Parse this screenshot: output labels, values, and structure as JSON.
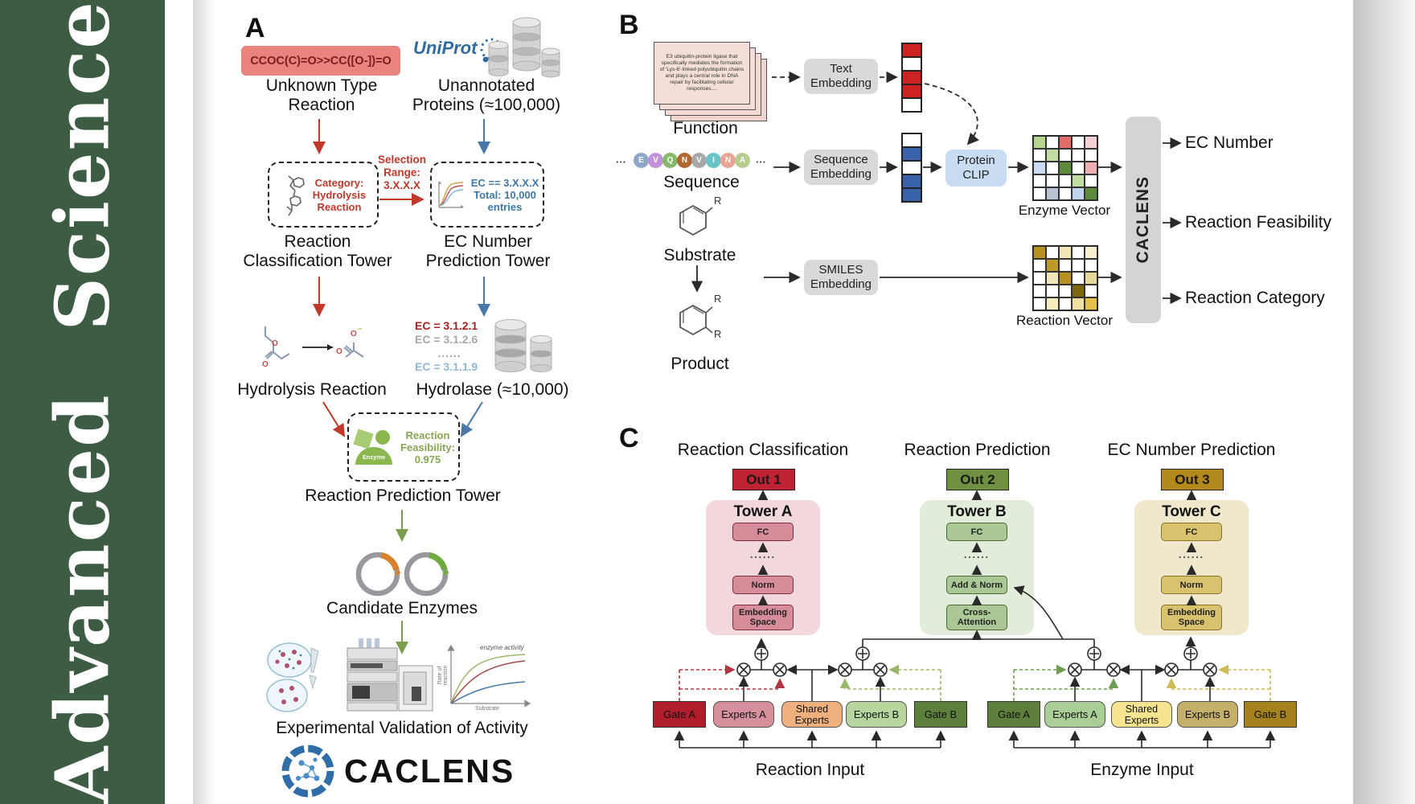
{
  "sidebar": {
    "journal": "Advanced Science"
  },
  "panel_a": {
    "label": "A",
    "smiles": "CCOC(C)=O>>CC([O-])=O",
    "uniprot": "UniProt",
    "unknown_reaction": "Unknown Type\nReaction",
    "unannotated": "Unannotated\nProteins (≈100,000)",
    "category_box": "Category:\nHydrolysis\nReaction",
    "selection": "Selection\nRange:\n3.X.X.X",
    "ec_box": "EC == 3.X.X.X\nTotal: 10,000\nentries",
    "classification_tower": "Reaction\nClassification Tower",
    "ec_tower": "EC Number\nPrediction Tower",
    "hydrolysis": "Hydrolysis Reaction",
    "ec_list": [
      "EC = 3.1.2.1",
      "EC = 3.1.2.6",
      "......",
      "EC = 3.1.1.9"
    ],
    "hydrolase": "Hydrolase (≈10,000)",
    "enzyme_badge": "Enzyme",
    "feasibility": "Reaction\nFeasibility:\n0.975",
    "prediction_tower": "Reaction Prediction Tower",
    "candidate": "Candidate Enzymes",
    "graph": {
      "curve_label": "enzyme activity",
      "ylabel": "Rate of reaction",
      "xlabel": "Substrate"
    },
    "validation": "Experimental Validation of Activity",
    "logo_text": "CACLENS"
  },
  "panel_b": {
    "label": "B",
    "function_card": "E3 ubiquitin-protein ligase that specifically mediates the formation of 'Lys-6'-linked polyubiquitin chains and plays a central role in DNA repair by facilitating cellular responses....",
    "function_label": "Function",
    "ellipsis_left": "···",
    "ellipsis_right": "···",
    "sequence": {
      "letters": [
        "E",
        "V",
        "Q",
        "N",
        "V",
        "I",
        "N",
        "A"
      ],
      "colors": [
        "#8ea6c8",
        "#c490dc",
        "#88b86a",
        "#b06830",
        "#a8a8a8",
        "#68c4c8",
        "#e8a494",
        "#b8cc8e"
      ],
      "label": "Sequence"
    },
    "substrate_label": "Substrate",
    "product_label": "Product",
    "r_label": "R",
    "text_embedding": "Text\nEmbedding",
    "sequence_embedding": "Sequence\nEmbedding",
    "smiles_embedding": "SMILES\nEmbedding",
    "protein_clip": "Protein\nCLIP",
    "text_vector": [
      "#cc2222",
      "#ffffff",
      "#cc2222",
      "#cc2222",
      "#ffffff"
    ],
    "seq_vector": [
      "#ffffff",
      "#3a62a8",
      "#ffffff",
      "#3a62a8",
      "#3a62a8"
    ],
    "enzyme_vector": {
      "label": "Enzyme Vector",
      "grid": [
        [
          "#b5d48e",
          "#ffffff",
          "#e06c6c",
          "#ffffff",
          "#f5d0d4"
        ],
        [
          "#ffffff",
          "#c2dca4",
          "#ffffff",
          "#ffffff",
          "#ffffff"
        ],
        [
          "#ccdcf0",
          "#ffffff",
          "#5f8a3c",
          "#ffffff",
          "#eeaeb2"
        ],
        [
          "#ffffff",
          "#ffffff",
          "#ffffff",
          "#c2dca4",
          "#ffffff"
        ],
        [
          "#ffffff",
          "#b8c4d4",
          "#ffffff",
          "#c0d4ee",
          "#5f8a3c"
        ]
      ]
    },
    "reaction_vector": {
      "label": "Reaction Vector",
      "grid": [
        [
          "#b8901f",
          "#ffffff",
          "#f2e6b8",
          "#ffffff",
          "#f7efd0"
        ],
        [
          "#ffffff",
          "#c09a28",
          "#ffffff",
          "#ffffff",
          "#ffffff"
        ],
        [
          "#ffffff",
          "#f2e6b8",
          "#b8901f",
          "#ffffff",
          "#e6d898"
        ],
        [
          "#ffffff",
          "#ffffff",
          "#ffffff",
          "#7c680f",
          "#ffffff"
        ],
        [
          "#ffffff",
          "#f5ecc0",
          "#ffffff",
          "#f0dfa0",
          "#e4c048"
        ]
      ]
    },
    "caclens_bar": "CACLENS",
    "outputs": [
      "EC Number",
      "Reaction Feasibility",
      "Reaction Category"
    ]
  },
  "panel_c": {
    "label": "C",
    "titles": [
      "Reaction Classification",
      "Reaction Prediction",
      "EC Number Prediction"
    ],
    "outs": [
      "Out 1",
      "Out 2",
      "Out 3"
    ],
    "towers": [
      {
        "name": "Tower A",
        "layers": [
          "FC",
          "......",
          "Norm",
          "Embedding\nSpace"
        ]
      },
      {
        "name": "Tower B",
        "layers": [
          "FC",
          "......",
          "Add & Norm",
          "Cross-\nAttention"
        ]
      },
      {
        "name": "Tower C",
        "layers": [
          "FC",
          "......",
          "Norm",
          "Embedding\nSpace"
        ]
      }
    ],
    "moe_reaction": {
      "boxes": [
        "Gate A",
        "Experts A",
        "Shared\nExperts",
        "Experts B",
        "Gate B"
      ],
      "input": "Reaction Input"
    },
    "moe_enzyme": {
      "boxes": [
        "Gate A",
        "Experts A",
        "Shared\nExperts",
        "Experts B",
        "Gate B"
      ],
      "input": "Enzyme Input"
    }
  },
  "colors": {
    "sidebar_green": "#3d5c44",
    "smiles_box": "#e8837e",
    "uniprot_blue": "#2f6b9e",
    "red_accent": "#c0392b",
    "blue_accent": "#4878a8",
    "green_accent": "#7a9e4e",
    "protein_clip_bg": "#c8dcf2",
    "caclens_bar_bg": "#d4d4d4",
    "out1": "#bf2333",
    "out2": "#6e9040",
    "out3": "#b3891d",
    "tower_a_bg": "#f2d7dc",
    "tower_b_bg": "#e2ecda",
    "tower_c_bg": "#f0e8cd",
    "gate_a_reaction": "#b01e2e",
    "experts_a_reaction": "#d6909c",
    "shared_reaction": "#eeb07c",
    "experts_b_reaction": "#b6d69e",
    "gate_b_reaction": "#5d7f3c",
    "gate_a_enzyme": "#5d7f3c",
    "experts_a_enzyme": "#a9cf97",
    "shared_enzyme": "#f7e48e",
    "experts_b_enzyme": "#c5b06a",
    "gate_b_enzyme": "#a5821c"
  }
}
